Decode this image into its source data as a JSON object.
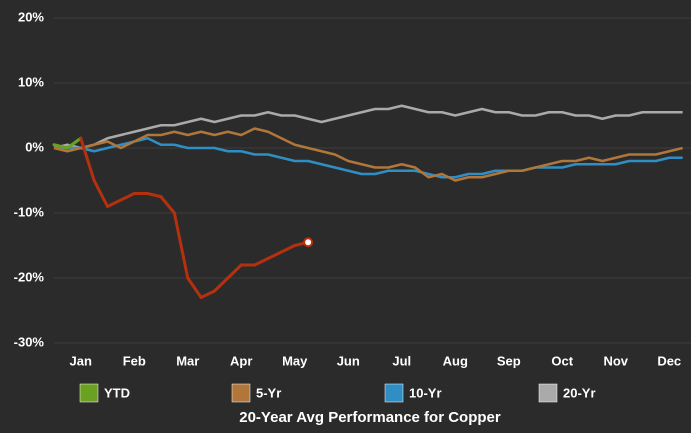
{
  "chart_data": {
    "type": "line",
    "title": "20-Year Avg Performance for Copper",
    "categories": [
      null,
      null,
      "Jan",
      null,
      null,
      null,
      "Feb",
      null,
      null,
      null,
      "Mar",
      null,
      null,
      null,
      "Apr",
      null,
      null,
      null,
      "May",
      null,
      null,
      null,
      "Jun",
      null,
      null,
      null,
      "Jul",
      null,
      null,
      null,
      "Aug",
      null,
      null,
      null,
      "Sep",
      null,
      null,
      null,
      "Oct",
      null,
      null,
      null,
      "Nov",
      null,
      null,
      null,
      "Dec",
      null
    ],
    "ylim": [
      -30,
      20
    ],
    "yticks": [
      {
        "value": -30,
        "label": "-30%"
      },
      {
        "value": -20,
        "label": "-20%"
      },
      {
        "value": -10,
        "label": "-10%"
      },
      {
        "value": 0,
        "label": "0%"
      },
      {
        "value": 10,
        "label": "10%"
      },
      {
        "value": 20,
        "label": "20%"
      }
    ],
    "grid": true,
    "legend": "bottom",
    "series": [
      {
        "name": "YTD",
        "color": "#6aa121",
        "negative_color": "#b5300f",
        "values": [
          0.5,
          0,
          1.5,
          -5,
          -9,
          -8,
          -7,
          -7,
          -7.5,
          -10,
          -20,
          -23,
          -22,
          -20,
          -18,
          -18,
          -17,
          -16,
          -15,
          -14.5,
          null,
          null,
          null,
          null,
          null,
          null,
          null,
          null,
          null,
          null,
          null,
          null,
          null,
          null,
          null,
          null,
          null,
          null,
          null,
          null,
          null,
          null,
          null,
          null,
          null,
          null,
          null,
          null
        ]
      },
      {
        "name": "5-Yr",
        "color": "#b0763a",
        "values": [
          0,
          -0.5,
          0,
          0.5,
          1,
          0,
          1,
          2,
          2,
          2.5,
          2,
          2.5,
          2,
          2.5,
          2,
          3,
          2.5,
          1.5,
          0.5,
          0,
          -0.5,
          -1,
          -2,
          -2.5,
          -3,
          -3,
          -2.5,
          -3,
          -4.5,
          -4,
          -5,
          -4.5,
          -4.5,
          -4,
          -3.5,
          -3.5,
          -3,
          -2.5,
          -2,
          -2,
          -1.5,
          -2,
          -1.5,
          -1,
          -1,
          -1,
          -0.5,
          0
        ]
      },
      {
        "name": "10-Yr",
        "color": "#2f8fc4",
        "values": [
          0,
          0,
          0,
          -0.5,
          0,
          0.5,
          1,
          1.5,
          0.5,
          0.5,
          0,
          0,
          0,
          -0.5,
          -0.5,
          -1,
          -1,
          -1.5,
          -2,
          -2,
          -2.5,
          -3,
          -3.5,
          -4,
          -4,
          -3.5,
          -3.5,
          -3.5,
          -4,
          -4.5,
          -4.5,
          -4,
          -4,
          -3.5,
          -3.5,
          -3.5,
          -3,
          -3,
          -3,
          -2.5,
          -2.5,
          -2.5,
          -2.5,
          -2,
          -2,
          -2,
          -1.5,
          -1.5
        ]
      },
      {
        "name": "20-Yr",
        "color": "#aaaaaa",
        "values": [
          0,
          0.5,
          0,
          0.5,
          1.5,
          2,
          2.5,
          3,
          3.5,
          3.5,
          4,
          4.5,
          4,
          4.5,
          5,
          5,
          5.5,
          5,
          5,
          4.5,
          4,
          4.5,
          5,
          5.5,
          6,
          6,
          6.5,
          6,
          5.5,
          5.5,
          5,
          5.5,
          6,
          5.5,
          5.5,
          5,
          5,
          5.5,
          5.5,
          5,
          5,
          4.5,
          5,
          5,
          5.5,
          5.5,
          5.5,
          5.5
        ]
      }
    ]
  }
}
